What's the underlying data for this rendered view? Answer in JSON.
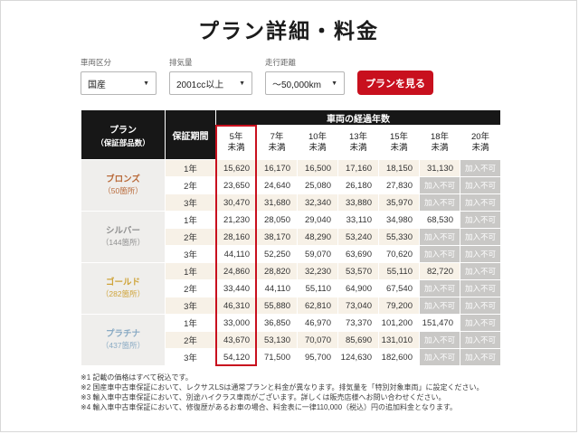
{
  "title": "プラン詳細・料金",
  "filters": {
    "vehicle_class": {
      "label": "車両区分",
      "value": "国産"
    },
    "displacement": {
      "label": "排気量",
      "value": "2001cc以上"
    },
    "mileage": {
      "label": "走行距離",
      "value": "～50,000km"
    },
    "submit_label": "プランを見る"
  },
  "colors": {
    "accent_red": "#c8101e",
    "header_black": "#171717",
    "row_beige": "#f7f1e7",
    "na_gray": "#c9c8c6",
    "bronze": "#b96a3a",
    "silver": "#8f8f8f",
    "gold": "#cfa43a",
    "platinum": "#8aabc4"
  },
  "table": {
    "plan_header_line1": "プラン",
    "plan_header_line2": "（保証部品数）",
    "period_header": "保証期間",
    "age_header": "車両の経過年数",
    "age_columns": [
      {
        "years": "5年",
        "suffix": "未満",
        "highlighted": true
      },
      {
        "years": "7年",
        "suffix": "未満"
      },
      {
        "years": "10年",
        "suffix": "未満"
      },
      {
        "years": "13年",
        "suffix": "未満"
      },
      {
        "years": "15年",
        "suffix": "未満"
      },
      {
        "years": "18年",
        "suffix": "未満"
      },
      {
        "years": "20年",
        "suffix": "未満"
      }
    ],
    "not_available_label": "加入不可",
    "plans": [
      {
        "name": "ブロンズ",
        "parts_count": "（50箇所）",
        "color_key": "bronze",
        "rows": [
          {
            "period": "1年",
            "prices": [
              "15,620",
              "16,170",
              "16,500",
              "17,160",
              "18,150",
              "31,130",
              null
            ]
          },
          {
            "period": "2年",
            "prices": [
              "23,650",
              "24,640",
              "25,080",
              "26,180",
              "27,830",
              null,
              null
            ]
          },
          {
            "period": "3年",
            "prices": [
              "30,470",
              "31,680",
              "32,340",
              "33,880",
              "35,970",
              null,
              null
            ]
          }
        ]
      },
      {
        "name": "シルバー",
        "parts_count": "（144箇所）",
        "color_key": "silver",
        "rows": [
          {
            "period": "1年",
            "prices": [
              "21,230",
              "28,050",
              "29,040",
              "33,110",
              "34,980",
              "68,530",
              null
            ]
          },
          {
            "period": "2年",
            "prices": [
              "28,160",
              "38,170",
              "48,290",
              "53,240",
              "55,330",
              null,
              null
            ]
          },
          {
            "period": "3年",
            "prices": [
              "44,110",
              "52,250",
              "59,070",
              "63,690",
              "70,620",
              null,
              null
            ]
          }
        ]
      },
      {
        "name": "ゴールド",
        "parts_count": "（282箇所）",
        "color_key": "gold",
        "rows": [
          {
            "period": "1年",
            "prices": [
              "24,860",
              "28,820",
              "32,230",
              "53,570",
              "55,110",
              "82,720",
              null
            ]
          },
          {
            "period": "2年",
            "prices": [
              "33,440",
              "44,110",
              "55,110",
              "64,900",
              "67,540",
              null,
              null
            ]
          },
          {
            "period": "3年",
            "prices": [
              "46,310",
              "55,880",
              "62,810",
              "73,040",
              "79,200",
              null,
              null
            ]
          }
        ]
      },
      {
        "name": "プラチナ",
        "parts_count": "（437箇所）",
        "color_key": "platinum",
        "rows": [
          {
            "period": "1年",
            "prices": [
              "33,000",
              "36,850",
              "46,970",
              "73,370",
              "101,200",
              "151,470",
              null
            ]
          },
          {
            "period": "2年",
            "prices": [
              "43,670",
              "53,130",
              "70,070",
              "85,690",
              "131,010",
              null,
              null
            ]
          },
          {
            "period": "3年",
            "prices": [
              "54,120",
              "71,500",
              "95,700",
              "124,630",
              "182,600",
              null,
              null
            ]
          }
        ]
      }
    ]
  },
  "footnotes": [
    "※1 記載の価格はすべて税込です。",
    "※2 国産車中古車保証において、レクサスLSは通常プランと料金が異なります。排気量を「特別対象車両」に設定ください。",
    "※3 輸入車中古車保証において、別途ハイクラス車両がございます。詳しくは販売店様へお問い合わせください。",
    "※4 輸入車中古車保証において、修復歴があるお車の場合、料金表に一律110,000（税込）円の追加料金となります。"
  ]
}
